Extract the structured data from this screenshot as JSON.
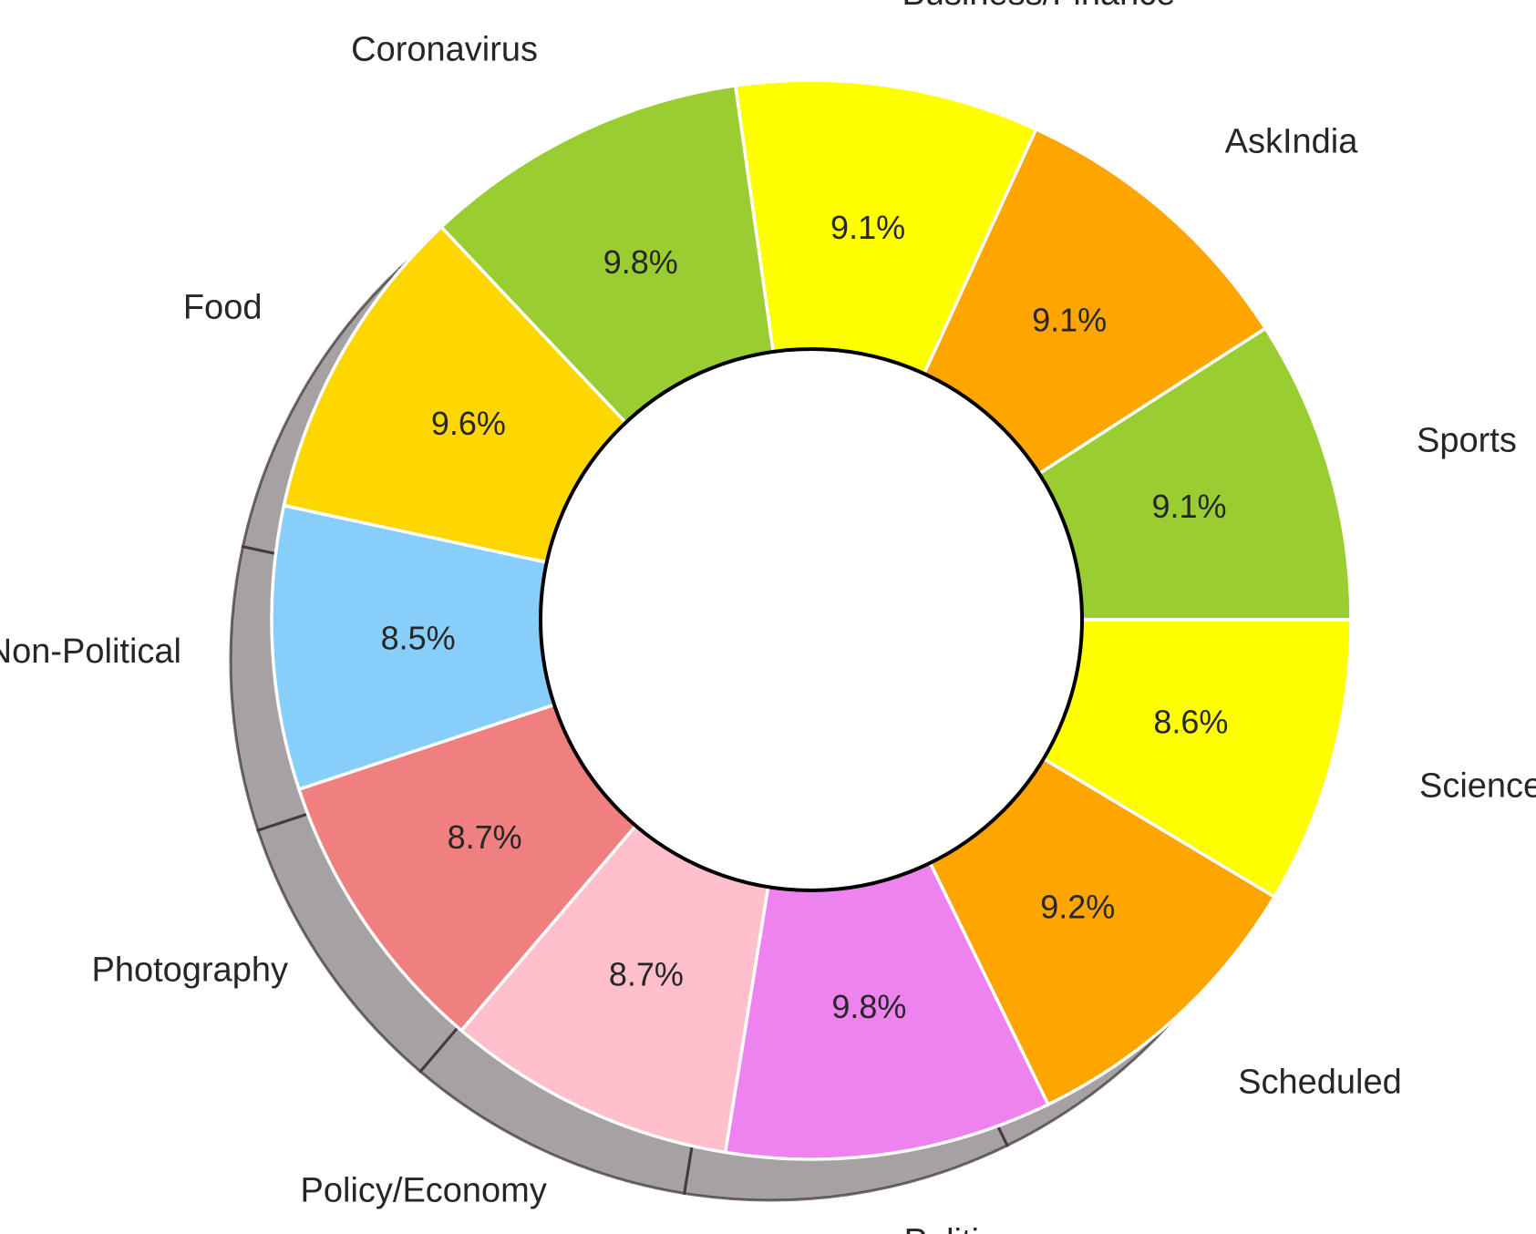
{
  "chart_data": {
    "type": "pie",
    "variant": "donut",
    "title": "",
    "categories": [
      "Sports",
      "AskIndia",
      "Business/Finance",
      "Coronavirus",
      "Food",
      "Non-Political",
      "Photography",
      "Policy/Economy",
      "Politics",
      "Scheduled",
      "Science/Technology"
    ],
    "values": [
      9.1,
      9.1,
      9.1,
      9.8,
      9.6,
      8.5,
      8.7,
      8.7,
      9.8,
      9.2,
      8.6
    ],
    "value_labels": [
      "9.1%",
      "9.1%",
      "9.1%",
      "9.8%",
      "9.6%",
      "8.5%",
      "8.7%",
      "8.7%",
      "9.8%",
      "9.2%",
      "8.6%"
    ],
    "colors": [
      "#9ACD32",
      "#FFA500",
      "#FFFF00",
      "#9ACD32",
      "#FFD700",
      "#87CEFA",
      "#F08080",
      "#FFC0CB",
      "#EE82EE",
      "#FFA500",
      "#FFFF00"
    ],
    "start_angle_deg": 0,
    "direction": "counterclockwise",
    "shadow": true,
    "legend": "none"
  }
}
